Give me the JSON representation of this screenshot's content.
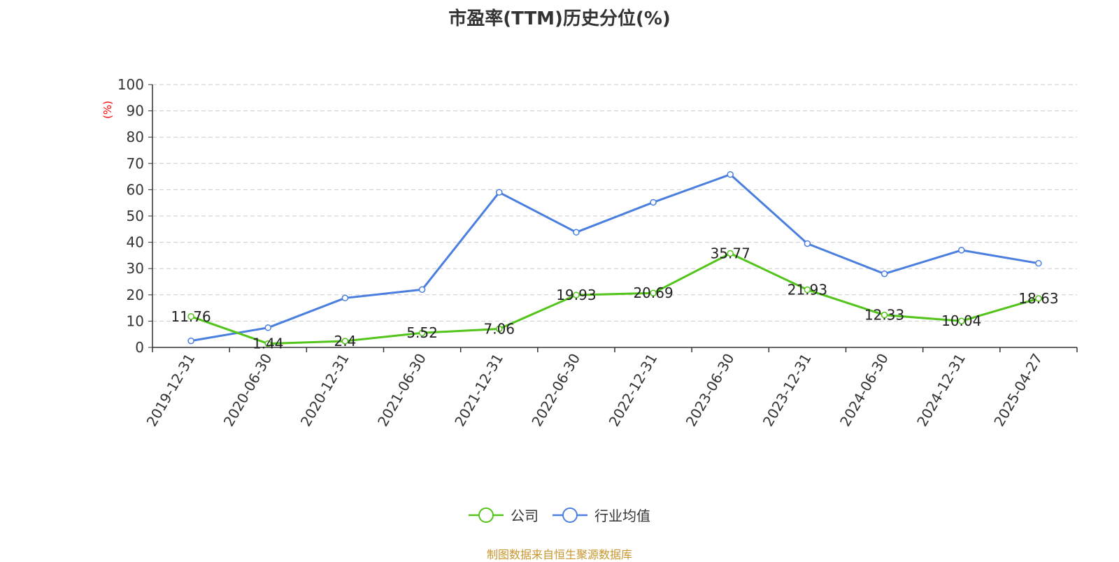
{
  "title": "市盈率(TTM)历史分位(%)",
  "unit_label": "(%)",
  "source_note": "制图数据来自恒生聚源数据库",
  "colors": {
    "company": "#52c41a",
    "industry": "#4a7fe0",
    "unit_label": "#ff0000",
    "grid": "#cccccc",
    "axis": "#333333",
    "source_note": "#c8962e"
  },
  "chart_data": {
    "type": "line",
    "title": "市盈率(TTM)历史分位(%)",
    "ylabel": "(%)",
    "xlabel": "",
    "ylim": [
      0,
      100
    ],
    "y_ticks": [
      0,
      10,
      20,
      30,
      40,
      50,
      60,
      70,
      80,
      90,
      100
    ],
    "grid": true,
    "legend_position": "bottom-center",
    "categories": [
      "2019-12-31",
      "2020-06-30",
      "2020-12-31",
      "2021-06-30",
      "2021-12-31",
      "2022-06-30",
      "2022-12-31",
      "2023-06-30",
      "2023-12-31",
      "2024-06-30",
      "2024-12-31",
      "2025-04-27"
    ],
    "series": [
      {
        "name": "公司",
        "color": "#52c41a",
        "values": [
          11.76,
          1.44,
          2.4,
          5.52,
          7.06,
          19.93,
          20.69,
          35.77,
          21.93,
          12.33,
          10.04,
          18.63
        ],
        "labels": [
          "11.76",
          "1.44",
          "2.4",
          "5.52",
          "7.06",
          "19.93",
          "20.69",
          "35.77",
          "21.93",
          "12.33",
          "10.04",
          "18.63"
        ],
        "show_labels": true
      },
      {
        "name": "行业均值",
        "color": "#4a7fe0",
        "values": [
          2.5,
          7.5,
          18.8,
          22,
          59,
          43.8,
          55.2,
          65.8,
          39.5,
          28,
          37,
          32
        ],
        "show_labels": false
      }
    ]
  }
}
